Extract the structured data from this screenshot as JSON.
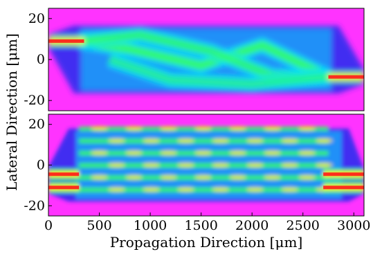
{
  "chart_data": [
    {
      "type": "heatmap",
      "panel": "top",
      "xlim": [
        0,
        3100
      ],
      "ylim": [
        -25,
        25
      ],
      "yticks": [
        20,
        0,
        -20
      ],
      "ytick_labels": [
        "20",
        "0",
        "-20"
      ],
      "colors": {
        "background": "#ff33ff",
        "low": "#2d2df0",
        "mid": "#00e0ff",
        "high": "#39ff5a",
        "peak": "#ffee00",
        "max": "#ff1a1a"
      },
      "field": {
        "inputs": [
          {
            "y": 9,
            "from": 0,
            "to": 350
          }
        ],
        "outputs": [
          {
            "y": -8.5,
            "from": 2750,
            "to": 3100
          }
        ],
        "guide_half_width": 16.5,
        "beams": [
          {
            "points": [
              [
                300,
                9
              ],
              [
                800,
                5
              ],
              [
                1500,
                -3
              ],
              [
                2100,
                7
              ],
              [
                2750,
                -8.5
              ]
            ],
            "intensity": 0.85
          },
          {
            "points": [
              [
                300,
                9
              ],
              [
                900,
                12
              ],
              [
                1600,
                4
              ],
              [
                2200,
                -8
              ],
              [
                2750,
                -8.5
              ]
            ],
            "intensity": 0.75
          },
          {
            "points": [
              [
                600,
                0
              ],
              [
                1200,
                -10
              ],
              [
                2000,
                -12
              ],
              [
                2750,
                -8.5
              ]
            ],
            "intensity": 0.55
          }
        ]
      }
    },
    {
      "type": "heatmap",
      "panel": "bottom",
      "xlim": [
        0,
        3100
      ],
      "ylim": [
        -25,
        25
      ],
      "yticks": [
        20,
        0,
        -20
      ],
      "ytick_labels": [
        "20",
        "0",
        "-20"
      ],
      "xticks": [
        0,
        500,
        1000,
        1500,
        2000,
        2500,
        3000
      ],
      "xtick_labels": [
        "0",
        "500",
        "1000",
        "1500",
        "2000",
        "2500",
        "3000"
      ],
      "field": {
        "inputs": [
          {
            "y": -4.5,
            "from": 0,
            "to": 300
          },
          {
            "y": -11,
            "from": 0,
            "to": 300
          }
        ],
        "outputs": [
          {
            "y": -4.5,
            "from": 2700,
            "to": 3100
          },
          {
            "y": -11,
            "from": 2700,
            "to": 3100
          }
        ],
        "guide_half_width": 18,
        "fringes": [
          18,
          12,
          6,
          0,
          -6,
          -12
        ],
        "fringe_start": 300,
        "fringe_end": 2750
      }
    }
  ],
  "axes": {
    "xlabel": "Propagation Direction  [μm]",
    "ylabel": "Lateral  Direction  [μm]"
  }
}
